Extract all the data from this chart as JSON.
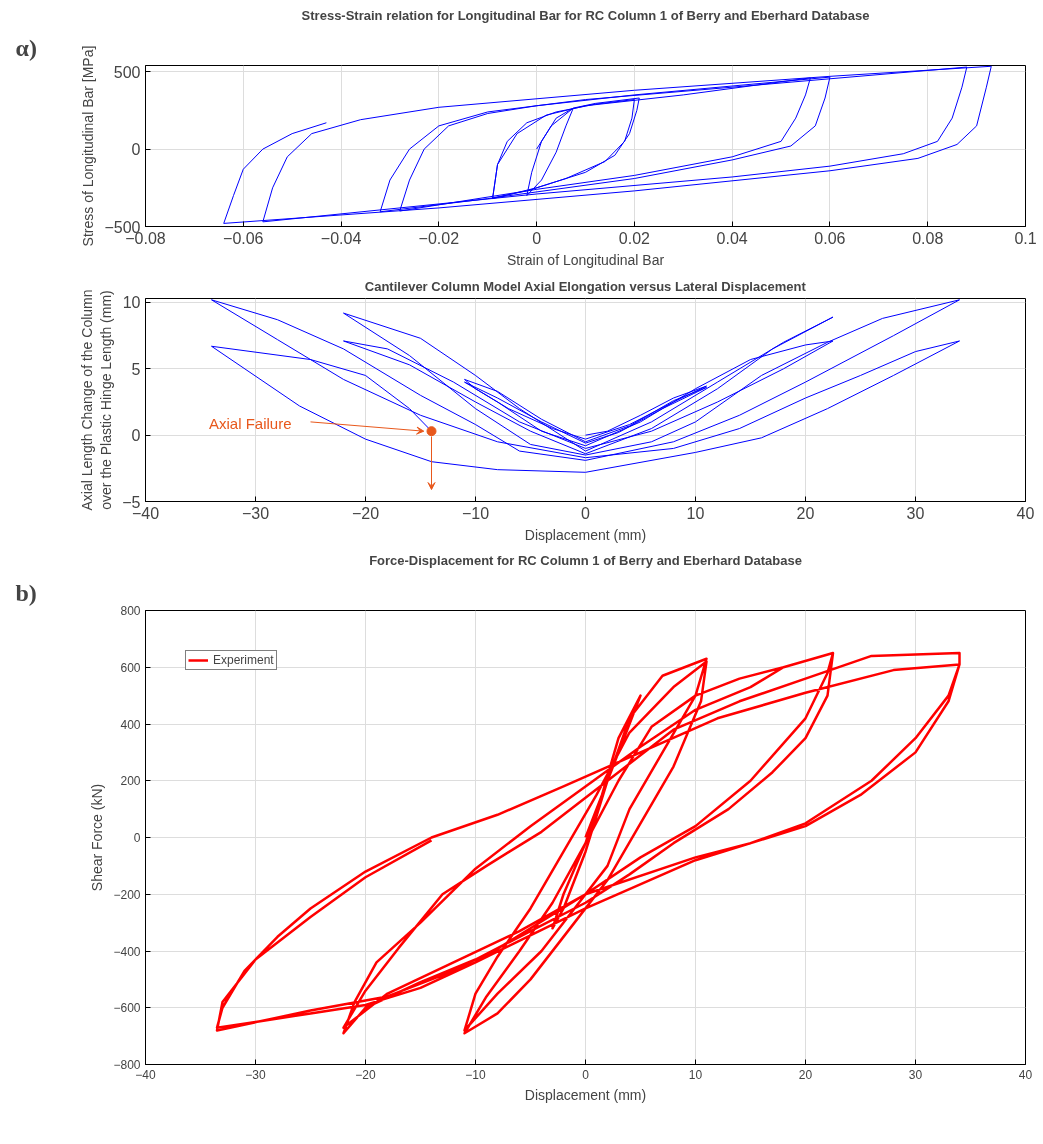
{
  "chart_data": [
    {
      "type": "line",
      "title": "Stress-Strain relation for Longitudinal Bar for RC Column 1 of Berry and Eberhard Database",
      "xlabel": "Strain of Longitudinal Bar",
      "ylabel": "Stress of Longitudinal Bar [MPa]",
      "xlim": [
        -0.08,
        0.1
      ],
      "ylim": [
        -500,
        540
      ],
      "xticks": [
        -0.08,
        -0.06,
        -0.04,
        -0.02,
        0,
        0.02,
        0.04,
        0.06,
        0.08,
        0.1
      ],
      "yticks": [
        -500,
        0,
        500
      ],
      "grid": true,
      "annotations": [
        "α)"
      ],
      "series": [
        {
          "color": "#0000ff",
          "x": [
            0,
            0.003,
            0.0075,
            0.006,
            0.004,
            0.001,
            -0.002,
            -0.001,
            0.001,
            0.004,
            0.0075,
            0.012,
            0.021,
            0.0205,
            0.019,
            0.016,
            0.01,
            0.0,
            -0.009,
            -0.008,
            -0.006,
            -0.002,
            0.004,
            0.012,
            0.02,
            0.0195,
            0.018,
            0.014,
            0.006,
            -0.002,
            -0.009,
            -0.008,
            -0.004,
            0.002,
            0.01,
            0.03,
            0.056,
            0.055,
            0.053,
            0.05,
            0.04,
            0.02,
            0.0,
            -0.028,
            -0.026,
            -0.023,
            -0.018,
            -0.01,
            0.0,
            0.02,
            0.06,
            0.059,
            0.057,
            0.052,
            0.04,
            0.02,
            -0.01,
            -0.032,
            -0.03,
            -0.026,
            -0.02,
            -0.01,
            0.01,
            0.04,
            0.088,
            0.087,
            0.085,
            0.082,
            0.075,
            0.06,
            0.04,
            0.0,
            -0.056,
            -0.054,
            -0.051,
            -0.046,
            -0.036,
            -0.02,
            0.02,
            0.06,
            0.093,
            0.092,
            0.09,
            0.086,
            0.078,
            0.06,
            0.02,
            -0.02,
            -0.064,
            -0.062,
            -0.06,
            -0.056,
            -0.05,
            -0.043
          ],
          "values": [
            0,
            150,
            265,
            150,
            -20,
            -200,
            -300,
            -150,
            50,
            200,
            265,
            295,
            330,
            250,
            100,
            -40,
            -150,
            -250,
            -320,
            -100,
            50,
            170,
            240,
            290,
            320,
            200,
            50,
            -80,
            -190,
            -270,
            -315,
            -100,
            100,
            220,
            280,
            350,
            460,
            350,
            200,
            50,
            -50,
            -170,
            -260,
            -400,
            -200,
            0,
            150,
            230,
            280,
            350,
            465,
            330,
            150,
            20,
            -70,
            -190,
            -320,
            -405,
            -200,
            0,
            150,
            240,
            320,
            400,
            530,
            400,
            200,
            50,
            -30,
            -110,
            -180,
            -290,
            -470,
            -250,
            -50,
            100,
            190,
            270,
            380,
            470,
            535,
            400,
            150,
            30,
            -60,
            -140,
            -270,
            -380,
            -480,
            -300,
            -130,
            0,
            100,
            170
          ]
        }
      ]
    },
    {
      "type": "line",
      "title": "Cantilever Column Model Axial Elongation versus Lateral Displacement",
      "xlabel": "Displacement (mm)",
      "ylabel": "Axial Length Change of the Column\nover the Plastic Hinge Length (mm)",
      "xlim": [
        -40,
        40
      ],
      "ylim": [
        -5,
        10.3
      ],
      "xticks": [
        -40,
        -30,
        -20,
        -10,
        0,
        10,
        20,
        30,
        40
      ],
      "yticks": [
        -5,
        0,
        5,
        10
      ],
      "grid": true,
      "annotations": [
        {
          "text": "Axial Failure",
          "x": -14,
          "y": 0.3
        }
      ],
      "series": [
        {
          "color": "#0000ff",
          "x": [
            0,
            2,
            5,
            8,
            11,
            8,
            4,
            0,
            -3,
            -7,
            -10,
            -11,
            -8,
            -4,
            0,
            4,
            8,
            11,
            7,
            3,
            0,
            -4,
            -8,
            -11,
            -8,
            -4,
            0,
            5,
            10,
            15,
            20,
            22.5,
            18,
            12,
            6,
            0,
            -6,
            -12,
            -18,
            -22,
            -16,
            -10,
            -5,
            0,
            6,
            12,
            17,
            22.5,
            18,
            12,
            6,
            0,
            -6,
            -10,
            -15,
            -22,
            -16,
            -10,
            -5,
            0,
            6,
            10,
            16,
            22,
            27,
            34,
            28,
            20,
            14,
            8,
            0,
            -6,
            -10,
            -15,
            -22,
            -28,
            -34,
            -28,
            -22,
            -15,
            -8,
            0,
            8,
            14,
            20,
            25,
            30,
            34,
            28,
            22,
            16,
            10,
            0,
            -8,
            -14,
            -20,
            -26,
            -34,
            -25,
            -20,
            -16,
            -14
          ],
          "values": [
            0,
            0.3,
            1.5,
            2.8,
            3.7,
            2.5,
            0.8,
            -0.3,
            0.5,
            2,
            3.5,
            4.2,
            3.3,
            1.2,
            -0.5,
            0.7,
            2.6,
            3.6,
            2,
            0.2,
            -0.6,
            1,
            2.8,
            4,
            2.5,
            0.3,
            -0.8,
            1,
            3.5,
            5.7,
            6.8,
            7.1,
            5,
            2.5,
            0.3,
            -1,
            1,
            4,
            6.5,
            7.1,
            5.3,
            2.5,
            0.3,
            -1.4,
            0.5,
            3.5,
            6.5,
            8.9,
            7,
            4,
            1,
            -1.2,
            2,
            4.5,
            7.3,
            9.2,
            6,
            2,
            -0.7,
            -1.5,
            -0.5,
            1,
            4.5,
            7,
            8.8,
            10.2,
            7.5,
            4,
            1.5,
            -0.5,
            -1.9,
            -1.2,
            0.8,
            3,
            6.5,
            8.7,
            10.2,
            7.2,
            4.2,
            1.5,
            -0.5,
            -1.7,
            -1,
            0.5,
            2.8,
            4.5,
            6.3,
            7.1,
            4.5,
            2,
            -0.2,
            -1.3,
            -2.8,
            -2.6,
            -2,
            -0.3,
            2.2,
            6.7,
            5.7,
            4.5,
            2,
            0.3
          ]
        },
        {
          "type": "scatter",
          "color": "#e8581c",
          "marker": "circle",
          "x": [
            -14
          ],
          "values": [
            0.3
          ]
        }
      ]
    },
    {
      "type": "line",
      "title": "Force-Displacement for RC Column 1 of Berry and Eberhard Database",
      "xlabel": "Displacement (mm)",
      "ylabel": "Shear Force (kN)",
      "xlim": [
        -40,
        40
      ],
      "ylim": [
        -800,
        800
      ],
      "xticks": [
        -40,
        -30,
        -20,
        -10,
        0,
        10,
        20,
        30,
        40
      ],
      "yticks": [
        -800,
        -600,
        -400,
        -200,
        0,
        200,
        400,
        600,
        800
      ],
      "grid": true,
      "legend": "top left",
      "annotations": [
        "b)"
      ],
      "series": [
        {
          "name": "Experiment",
          "color": "#ff0000",
          "x": [
            0,
            1.5,
            3,
            5,
            4,
            2,
            0,
            -2,
            -3,
            -2,
            0,
            2,
            4,
            7,
            11,
            10,
            7,
            4,
            2,
            -1,
            -4,
            -8,
            -11,
            -10,
            -8,
            -5,
            -2,
            1,
            4,
            8,
            11,
            10.5,
            8,
            5,
            2,
            -1,
            -5,
            -8,
            -11,
            -9,
            -6,
            -3,
            0,
            3,
            6,
            10,
            14,
            18,
            22.5,
            22,
            20,
            17,
            13,
            8,
            4,
            0,
            -5,
            -10,
            -15,
            -20,
            -22,
            -21,
            -19,
            -15,
            -10,
            -5,
            0,
            5,
            10,
            15,
            18,
            22.5,
            22,
            20,
            15,
            10,
            5,
            0,
            -6,
            -12,
            -18,
            -22,
            -20,
            -17,
            -13,
            -9,
            -4,
            2,
            8,
            14,
            20,
            26,
            34,
            34,
            33,
            30,
            26,
            20,
            15,
            10,
            0,
            -5,
            -10,
            -15,
            -20,
            -25,
            -30,
            -33.5,
            -33,
            -31,
            -28,
            -25,
            -20,
            -14,
            -8,
            -2,
            5,
            12,
            20,
            28,
            34,
            33,
            30,
            25,
            20,
            10,
            0,
            -10,
            -18,
            -25,
            -33.5,
            -33,
            -30,
            -25,
            -20,
            -14
          ],
          "values": [
            0,
            150,
            350,
            500,
            400,
            200,
            -20,
            -200,
            -320,
            -250,
            -50,
            200,
            420,
            570,
            630,
            500,
            300,
            100,
            -100,
            -250,
            -400,
            -550,
            -680,
            -550,
            -420,
            -250,
            -50,
            150,
            370,
            530,
            620,
            480,
            250,
            50,
            -150,
            -300,
            -500,
            -620,
            -690,
            -560,
            -400,
            -230,
            -20,
            200,
            390,
            500,
            560,
            600,
            650,
            500,
            350,
            230,
            100,
            -20,
            -130,
            -230,
            -330,
            -430,
            -510,
            -600,
            -690,
            -580,
            -440,
            -300,
            -110,
            40,
            180,
            320,
            450,
            530,
            600,
            650,
            580,
            420,
            200,
            40,
            -70,
            -200,
            -330,
            -440,
            -550,
            -670,
            -540,
            -390,
            -200,
            -100,
            20,
            200,
            380,
            480,
            560,
            640,
            650,
            610,
            500,
            350,
            200,
            50,
            -20,
            -70,
            -200,
            -320,
            -440,
            -530,
            -590,
            -620,
            -650,
            -670,
            -600,
            -470,
            -350,
            -250,
            -120,
            0,
            80,
            180,
            300,
            420,
            510,
            590,
            610,
            480,
            300,
            150,
            40,
            -80,
            -250,
            -440,
            -560,
            -610,
            -680,
            -580,
            -430,
            -280,
            -140,
            -10
          ]
        }
      ]
    }
  ]
}
